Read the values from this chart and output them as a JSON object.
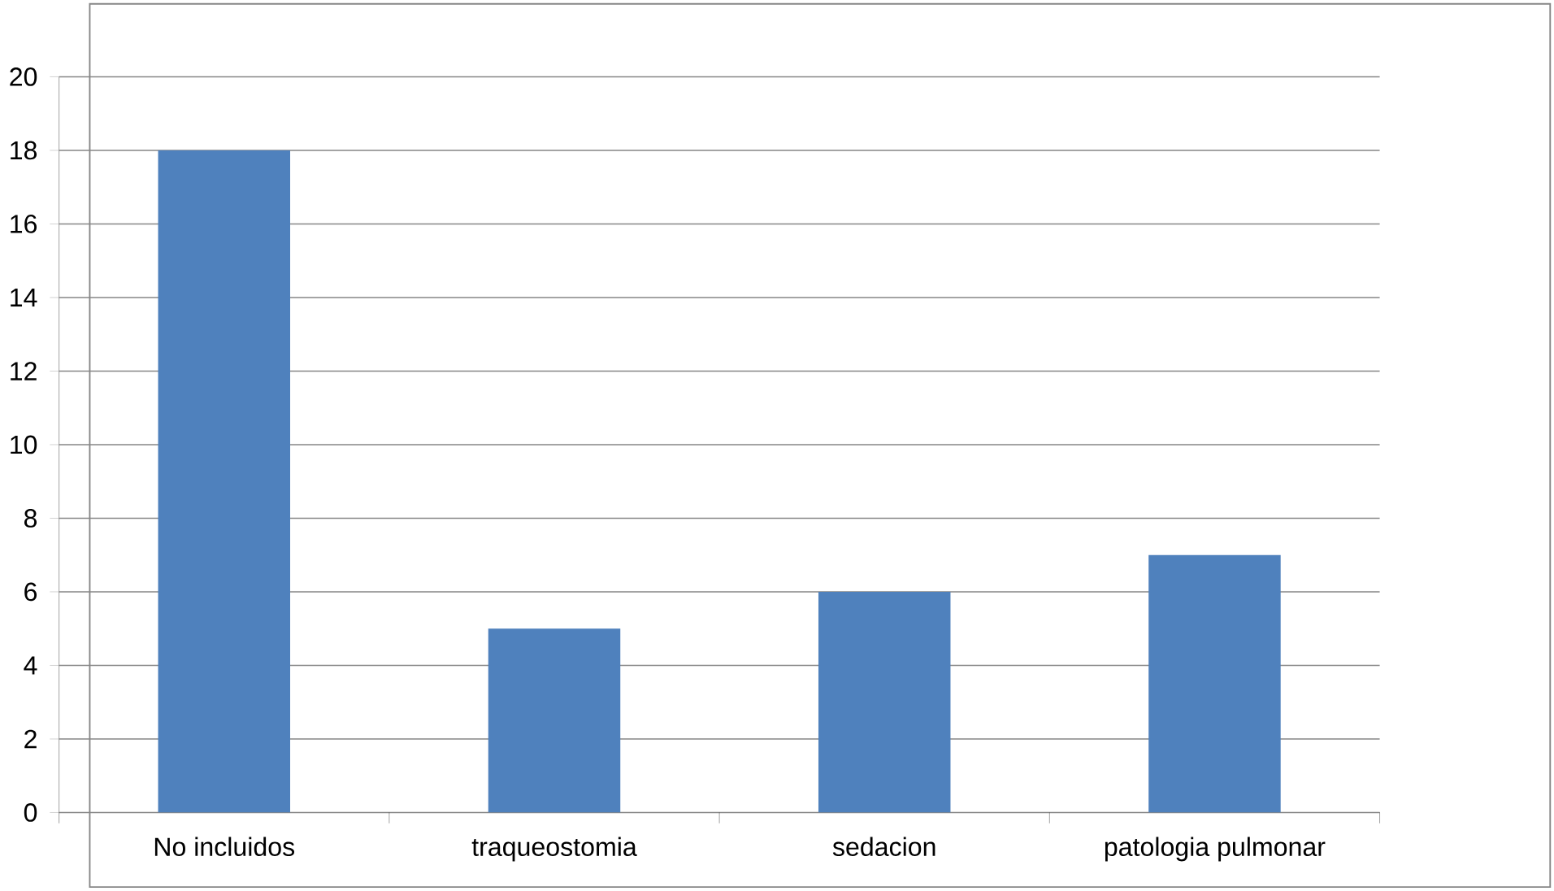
{
  "chart_data": {
    "type": "bar",
    "categories": [
      "No incluidos",
      "traqueostomia",
      "sedacion",
      "patologia pulmonar"
    ],
    "values": [
      18,
      5,
      6,
      7
    ],
    "color": "#4f81bd",
    "ylim": [
      0,
      20
    ],
    "yticks": [
      0,
      2,
      4,
      6,
      8,
      10,
      12,
      14,
      16,
      18,
      20
    ],
    "grid": "y"
  }
}
